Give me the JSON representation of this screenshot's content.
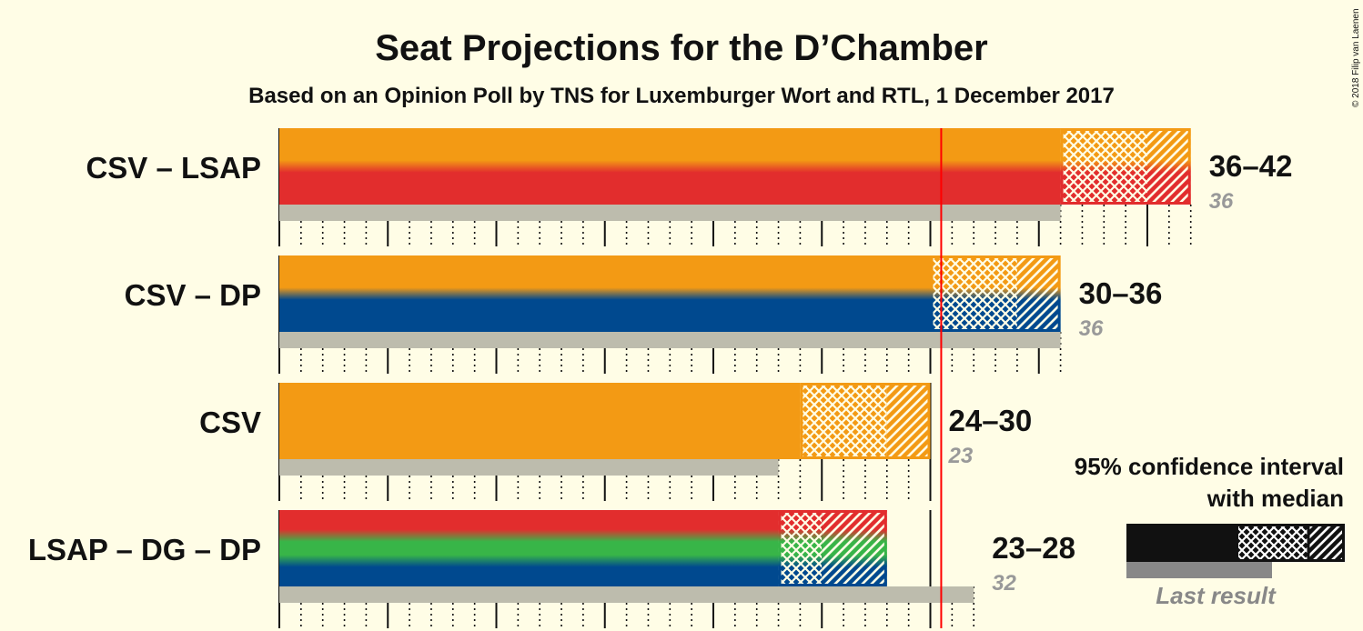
{
  "title": "Seat Projections for the D’Chamber",
  "subtitle": "Based on an Opinion Poll by TNS for Luxemburger Wort and RTL, 1 December 2017",
  "copyright": "© 2018 Filip van Laenen",
  "colors": {
    "CSV": "#f39a14",
    "LSAP": "#e22d2d",
    "DP": "#00498f",
    "DG": "#38b548",
    "last_result": "#bdbcad",
    "majority_line": "#ff0000",
    "background": "#fffde6"
  },
  "chart_data": {
    "type": "bar",
    "orientation": "horizontal",
    "majority": 31,
    "categories": [
      "CSV – LSAP",
      "CSV – DP",
      "CSV",
      "LSAP – DG – DP"
    ],
    "series": [
      {
        "label": "CSV – LSAP",
        "parties": [
          "CSV",
          "LSAP"
        ],
        "low": 36,
        "median": 40,
        "high": 42,
        "last_result": 36,
        "range_label": "36–42",
        "last_label": "36"
      },
      {
        "label": "CSV – DP",
        "parties": [
          "CSV",
          "DP"
        ],
        "low": 30,
        "median": 34,
        "high": 36,
        "last_result": 36,
        "range_label": "30–36",
        "last_label": "36"
      },
      {
        "label": "CSV",
        "parties": [
          "CSV"
        ],
        "low": 24,
        "median": 28,
        "high": 30,
        "last_result": 23,
        "range_label": "24–30",
        "last_label": "23"
      },
      {
        "label": "LSAP – DG – DP",
        "parties": [
          "LSAP",
          "DG",
          "DP"
        ],
        "low": 23,
        "median": 25,
        "high": 28,
        "last_result": 32,
        "range_label": "23–28",
        "last_label": "32"
      }
    ]
  },
  "legend": {
    "line1": "95% confidence interval",
    "line2": "with median",
    "last_result": "Last result"
  }
}
